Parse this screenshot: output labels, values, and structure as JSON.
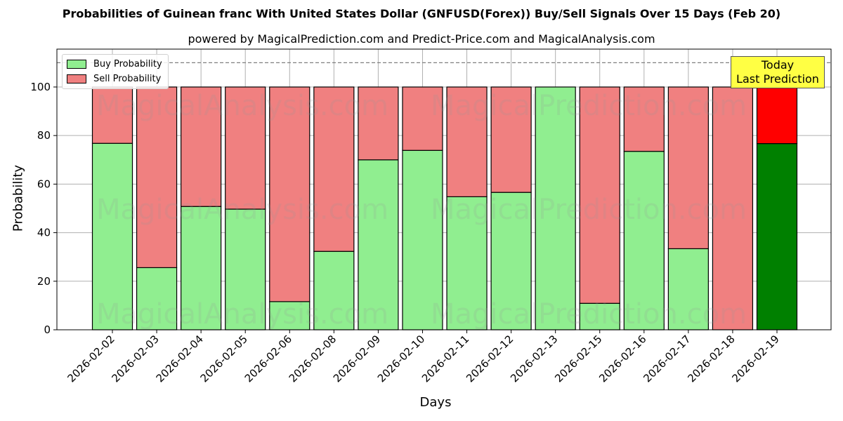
{
  "title": "Probabilities of Guinean franc With United States Dollar (GNFUSD(Forex)) Buy/Sell Signals Over 15 Days (Feb 20)",
  "subtitle": "powered by MagicalPrediction.com and Predict-Price.com and MagicalAnalysis.com",
  "legend": {
    "buy_label": "Buy Probability",
    "sell_label": "Sell Probability"
  },
  "annotation": {
    "line1": "Today",
    "line2": "Last Prediction"
  },
  "watermarks": [
    "MagicalAnalysis.com",
    "MagicalPrediction.com"
  ],
  "colors": {
    "buy": "#90ee90",
    "sell": "#f08080",
    "today_buy": "#008000",
    "today_sell": "#ff0000",
    "annotation_bg": "#ffff44"
  },
  "chart_data": {
    "type": "bar",
    "stacked": true,
    "title": "Probabilities of Guinean franc With United States Dollar (GNFUSD(Forex)) Buy/Sell Signals Over 15 Days (Feb 20)",
    "subtitle": "powered by MagicalPrediction.com and Predict-Price.com and MagicalAnalysis.com",
    "xlabel": "Days",
    "ylabel": "Probability",
    "ylim": [
      0,
      115.6
    ],
    "yticks": [
      0,
      20,
      40,
      60,
      80,
      100
    ],
    "grid": true,
    "legend_position": "upper left",
    "reference_line": {
      "y": 110,
      "style": "dashed",
      "color": "#808080"
    },
    "categories": [
      "2026-02-02",
      "2026-02-03",
      "2026-02-04",
      "2026-02-05",
      "2026-02-06",
      "2026-02-08",
      "2026-02-09",
      "2026-02-10",
      "2026-02-11",
      "2026-02-12",
      "2026-02-13",
      "2026-02-15",
      "2026-02-16",
      "2026-02-17",
      "2026-02-18",
      "2026-02-19"
    ],
    "series": [
      {
        "name": "Buy Probability",
        "values": [
          76.8,
          25.6,
          50.8,
          49.7,
          11.6,
          32.3,
          70.0,
          73.9,
          54.8,
          56.6,
          100.0,
          10.9,
          73.5,
          33.4,
          0.0,
          76.7
        ]
      },
      {
        "name": "Sell Probability",
        "values": [
          23.2,
          74.4,
          49.2,
          50.3,
          88.4,
          67.7,
          30.0,
          26.1,
          45.2,
          43.4,
          0.0,
          89.1,
          26.5,
          66.6,
          100.0,
          23.3
        ]
      }
    ],
    "highlight_last": {
      "label": "Today Last Prediction",
      "index": 15
    }
  }
}
